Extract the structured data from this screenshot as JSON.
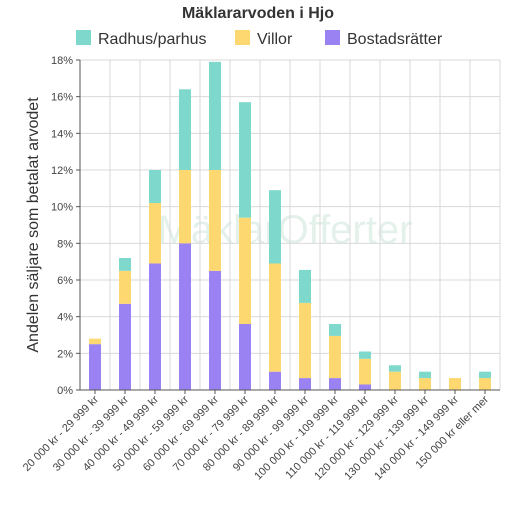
{
  "chart_data": {
    "type": "bar",
    "stacked": true,
    "title": "Mäklararvoden i Hjo",
    "ylabel": "Andelen säljare som betalat arvodet",
    "xlabel": "",
    "ylim": [
      0,
      18
    ],
    "y_tick_step": 2,
    "y_tick_suffix": "%",
    "grid": true,
    "legend_position": "top",
    "watermark": "MäklarOfferter",
    "categories": [
      "20 000 kr - 29 999 kr",
      "30 000 kr - 39 999 kr",
      "40 000 kr - 49 999 kr",
      "50 000 kr - 59 999 kr",
      "60 000 kr - 69 999 kr",
      "70 000 kr - 79 999 kr",
      "80 000 kr - 89 999 kr",
      "90 000 kr - 99 999 kr",
      "100 000 kr - 109 999 kr",
      "110 000 kr - 119 999 kr",
      "120 000 kr - 129 999 kr",
      "130 000 kr - 139 999 kr",
      "140 000 kr - 149 999 kr",
      "150 000 kr eller mer"
    ],
    "series": [
      {
        "name": "Bostadsrätter",
        "color": "#9b82f3",
        "values": [
          2.5,
          4.7,
          6.9,
          8.0,
          6.5,
          3.6,
          1.0,
          0.65,
          0.65,
          0.3,
          0,
          0,
          0,
          0
        ]
      },
      {
        "name": "Villor",
        "color": "#fdd870",
        "values": [
          0.3,
          1.8,
          3.3,
          4.0,
          5.5,
          5.8,
          5.9,
          4.1,
          2.3,
          1.4,
          1.0,
          0.65,
          0.65,
          0.65
        ]
      },
      {
        "name": "Radhus/parhus",
        "color": "#7fd8cc",
        "values": [
          0,
          0.7,
          1.8,
          4.4,
          5.9,
          6.3,
          4.0,
          1.8,
          0.65,
          0.4,
          0.35,
          0.35,
          0,
          0.35
        ]
      }
    ],
    "legend_order": [
      "Radhus/parhus",
      "Villor",
      "Bostadsrätter"
    ]
  }
}
